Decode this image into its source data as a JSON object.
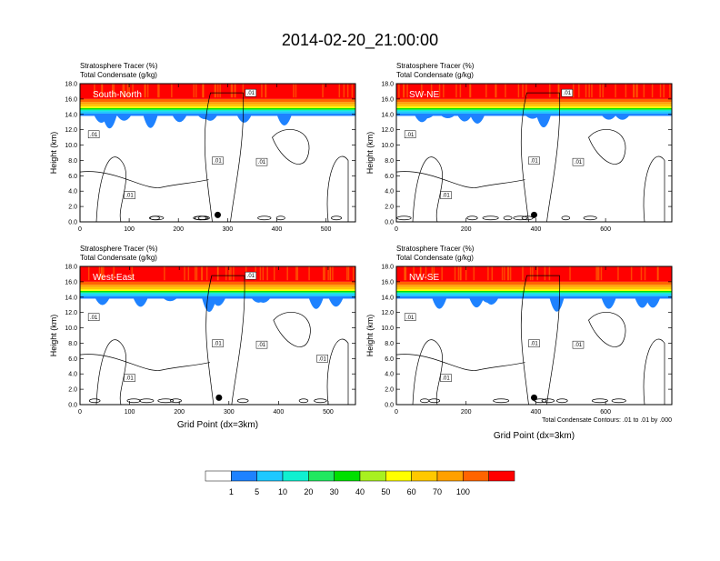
{
  "title": "2014-02-20_21:00:00",
  "colors": {
    "levels": [
      "#ffffff",
      "#1e82ff",
      "#1ec8ff",
      "#10f0d0",
      "#20e860",
      "#00e000",
      "#a8f020",
      "#ffff00",
      "#ffc800",
      "#ffa000",
      "#ff6400",
      "#ff0000"
    ]
  },
  "colorbar": {
    "labels": [
      "1",
      "5",
      "10",
      "20",
      "30",
      "40",
      "50",
      "60",
      "70",
      "100"
    ]
  },
  "footnote": "Total Condensate Contours: .01 to .01 by .000",
  "chart_data": [
    {
      "type": "heatmap",
      "name": "South-North",
      "title_line1": "Stratosphere Tracer   (%)",
      "title_line2": "Total Condensate   (g/kg)",
      "ylabel": "Height (km)",
      "xlabel": "",
      "xlim": [
        0,
        560
      ],
      "ylim": [
        0,
        18
      ],
      "xticks": [
        "0",
        "100",
        "200",
        "300",
        "400",
        "500"
      ],
      "xtick_values": [
        0,
        100,
        200,
        300,
        400,
        500
      ],
      "yticks": [
        "0.0",
        "2.0",
        "4.0",
        "6.0",
        "8.0",
        "10.0",
        "12.0",
        "14.0",
        "16.0",
        "18.0"
      ],
      "contour_labels": [
        ".01",
        ".01",
        ".01",
        ".01",
        ".01"
      ],
      "marker_x": 280
    },
    {
      "type": "heatmap",
      "name": "SW-NE",
      "title_line1": "Stratosphere Tracer   (%)",
      "title_line2": "Total Condensate   (g/kg)",
      "ylabel": "Height (km)",
      "xlabel": "",
      "xlim": [
        0,
        790
      ],
      "ylim": [
        0,
        18
      ],
      "xticks": [
        "0",
        "200",
        "400",
        "600"
      ],
      "xtick_values": [
        0,
        200,
        400,
        600
      ],
      "yticks": [
        "0.0",
        "2.0",
        "4.0",
        "6.0",
        "8.0",
        "10.0",
        "12.0",
        "14.0",
        "16.0",
        "18.0"
      ],
      "contour_labels": [
        ".01",
        ".01",
        ".01",
        ".01",
        ".01"
      ],
      "marker_x": 395
    },
    {
      "type": "heatmap",
      "name": "West-East",
      "title_line1": "Stratosphere Tracer   (%)",
      "title_line2": "Total Condensate   (g/kg)",
      "ylabel": "Height (km)",
      "xlabel": "Grid Point (dx=3km)",
      "xlim": [
        0,
        555
      ],
      "ylim": [
        0,
        18
      ],
      "xticks": [
        "0",
        "100",
        "200",
        "300",
        "400",
        "500"
      ],
      "xtick_values": [
        0,
        100,
        200,
        300,
        400,
        500
      ],
      "yticks": [
        "0.0",
        "2.0",
        "4.0",
        "6.0",
        "8.0",
        "10.0",
        "12.0",
        "14.0",
        "16.0",
        "18.0"
      ],
      "contour_labels": [
        ".01",
        ".01",
        ".01",
        ".01",
        ".01",
        ".01"
      ],
      "marker_x": 280
    },
    {
      "type": "heatmap",
      "name": "NW-SE",
      "title_line1": "Stratosphere Tracer   (%)",
      "title_line2": "Total Condensate   (g/kg)",
      "ylabel": "Height (km)",
      "xlabel": "Grid Point (dx=3km)",
      "xlim": [
        0,
        790
      ],
      "ylim": [
        0,
        18
      ],
      "xticks": [
        "0",
        "200",
        "400",
        "600"
      ],
      "xtick_values": [
        0,
        200,
        400,
        600
      ],
      "yticks": [
        "0.0",
        "2.0",
        "4.0",
        "6.0",
        "8.0",
        "10.0",
        "12.0",
        "14.0",
        "16.0",
        "18.0"
      ],
      "contour_labels": [
        ".01",
        ".01",
        ".01",
        ".01"
      ],
      "marker_x": 395
    }
  ]
}
